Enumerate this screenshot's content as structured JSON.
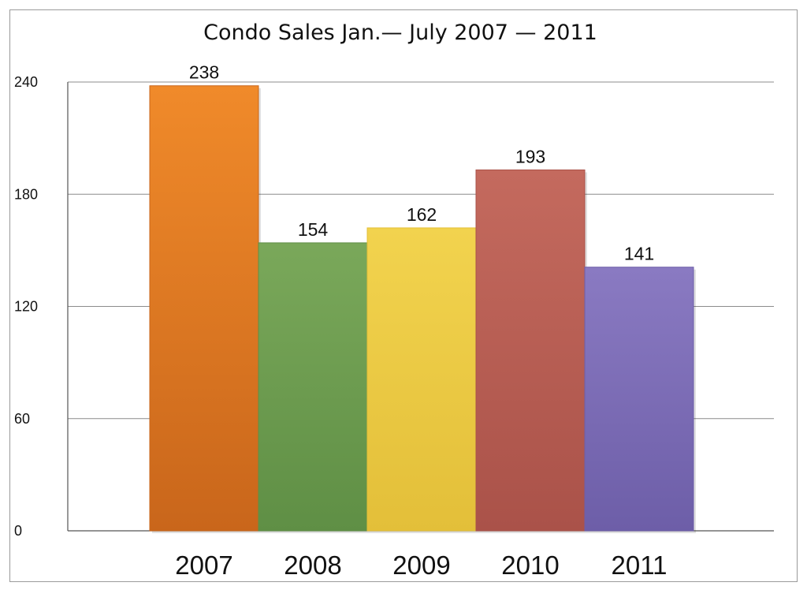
{
  "chart_data": {
    "type": "bar",
    "title": "Condo Sales Jan.— July 2007 — 2011",
    "xlabel": "",
    "ylabel": "",
    "categories": [
      "2007",
      "2008",
      "2009",
      "2010",
      "2011"
    ],
    "values": [
      238,
      154,
      162,
      193,
      141
    ],
    "data_labels": [
      "238",
      "154",
      "162",
      "193",
      "141"
    ],
    "yticks": [
      0,
      60,
      120,
      180,
      240
    ],
    "ylim": [
      0,
      240
    ],
    "grid": true,
    "legend": "none",
    "colors": [
      "#f08a2a",
      "#7aa85a",
      "#f2d34e",
      "#c46a5e",
      "#8a7ac2"
    ],
    "color_shades": [
      "#c9661b",
      "#5f8f45",
      "#e3bf39",
      "#aa5249",
      "#6d5ea8"
    ]
  }
}
